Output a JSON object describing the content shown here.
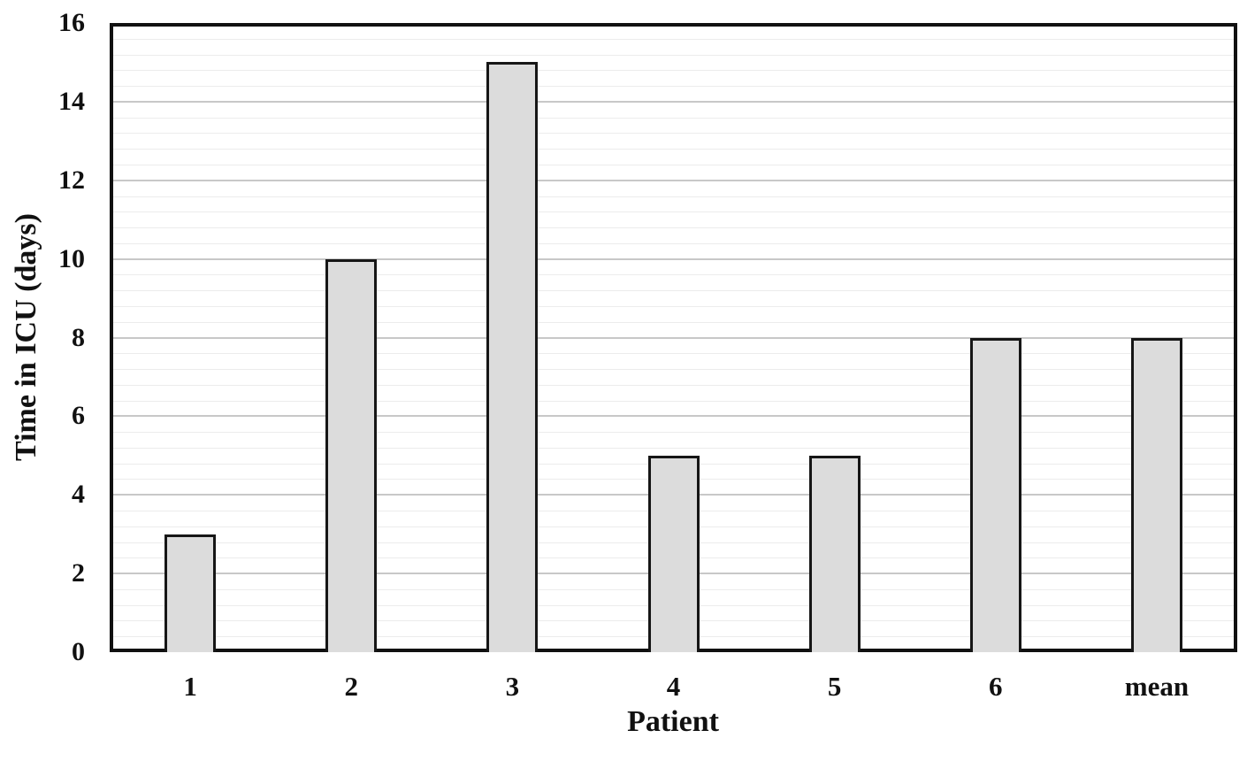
{
  "chart_data": {
    "type": "bar",
    "categories": [
      "1",
      "2",
      "3",
      "4",
      "5",
      "6",
      "mean"
    ],
    "values": [
      3,
      10,
      15,
      5,
      5,
      8,
      8
    ],
    "title": "",
    "xlabel": "Patient",
    "ylabel": "Time in ICU (days)",
    "ylim": [
      0,
      16
    ],
    "y_major_tick": 2,
    "y_minor_tick": 0.4,
    "y_tick_labels": [
      "0",
      "2",
      "4",
      "6",
      "8",
      "10",
      "12",
      "14",
      "16"
    ],
    "grid": "horizontal major and minor gridlines",
    "legend": "none",
    "colors": {
      "bar_fill": "#dcdcdc",
      "bar_border": "#161616",
      "plot_border": "#111111",
      "major_gridline": "#c8c8c8",
      "minor_gridline": "#ececec",
      "background": "#ffffff",
      "text": "#111111"
    }
  }
}
